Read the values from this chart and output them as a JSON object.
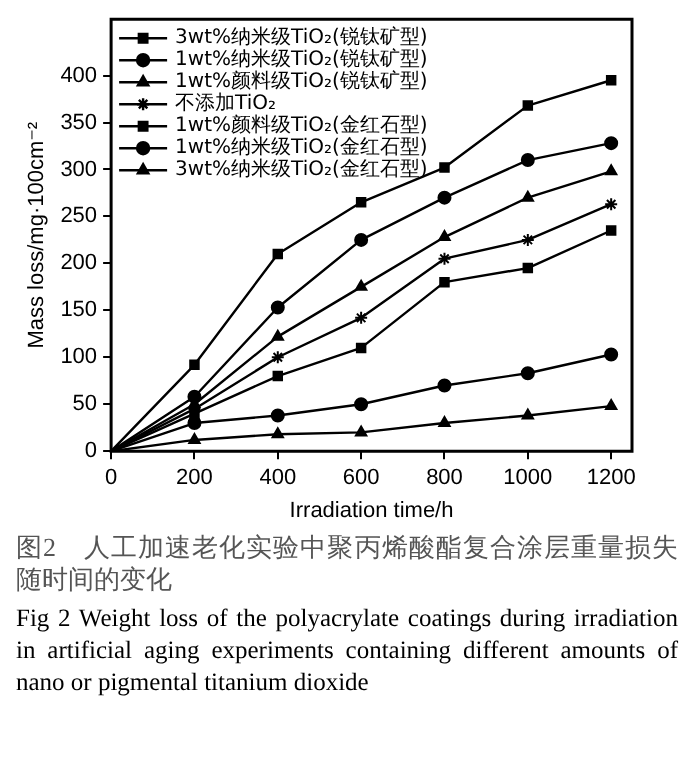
{
  "chart_data": {
    "type": "line",
    "xlabel": "Irradiation time/h",
    "ylabel": "Mass loss/mg·100cm⁻²",
    "x": [
      0,
      200,
      400,
      600,
      800,
      1000,
      1200
    ],
    "series": [
      {
        "name": "3wt%纳米级TiO₂(锐钛矿型)",
        "color": "#000000",
        "marker": "square",
        "values": [
          0,
          92,
          210,
          265,
          302,
          368,
          395
        ]
      },
      {
        "name": "1wt%纳米级TiO₂(锐钛矿型)",
        "color": "#000000",
        "marker": "circle",
        "values": [
          0,
          58,
          153,
          225,
          270,
          310,
          328
        ]
      },
      {
        "name": "1wt%颜料级TiO₂(锐钛矿型)",
        "color": "#000000",
        "marker": "triangle",
        "values": [
          0,
          50,
          122,
          175,
          228,
          270,
          298
        ]
      },
      {
        "name": "不添加TiO₂",
        "color": "#000000",
        "marker": "cross",
        "values": [
          0,
          45,
          100,
          142,
          205,
          225,
          263
        ]
      },
      {
        "name": "1wt%颜料级TiO₂(金红石型)",
        "color": "#000000",
        "marker": "square",
        "values": [
          0,
          40,
          80,
          110,
          180,
          195,
          235
        ]
      },
      {
        "name": "1wt%纳米级TiO₂(金红石型)",
        "color": "#000000",
        "marker": "circle",
        "values": [
          0,
          30,
          38,
          50,
          70,
          83,
          103
        ]
      },
      {
        "name": "3wt%纳米级TiO₂(金红石型)",
        "color": "#000000",
        "marker": "triangle",
        "values": [
          0,
          12,
          18,
          20,
          30,
          38,
          48
        ]
      }
    ],
    "xlim": [
      0,
      1250
    ],
    "xticks": [
      0,
      200,
      400,
      600,
      800,
      1000,
      1200
    ],
    "ylim": [
      0,
      460
    ],
    "yticks": [
      0,
      50,
      100,
      150,
      200,
      250,
      300,
      350,
      400
    ],
    "grid": false,
    "legend": "top left",
    "line_style": "solid",
    "annotations": [
      "图2　人工加速老化实验中聚丙烯酸酯复合涂层重量损失随时间的变化",
      "Fig 2 Weight loss of the polyacrylate coatings during irradiation in artificial aging experiments containing different amounts of nano or pigmental titanium dioxide"
    ]
  }
}
